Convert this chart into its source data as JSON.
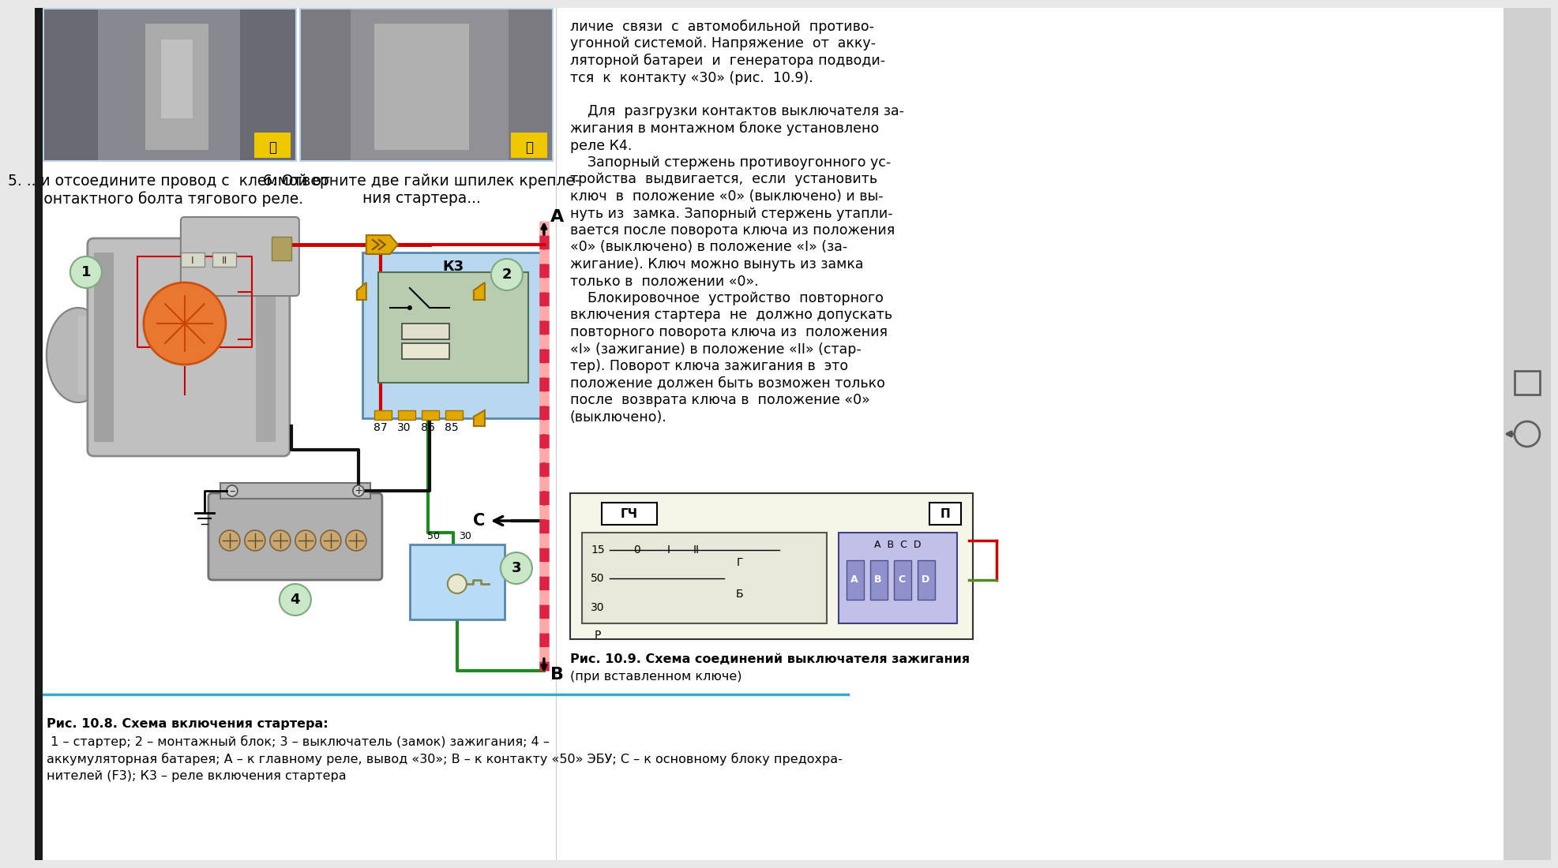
{
  "bg_color": "#e8e8e8",
  "content_bg": "#ffffff",
  "left_bar_color": "#1a1a1a",
  "right_bar_color": "#d0d0d0",
  "photo_bg1": "#8a8a8a",
  "photo_bg2": "#909090",
  "photo_border": "#b8d0e8",
  "photo_inner_border": "#90b8d8",
  "yellow_icon_color": "#f0c800",
  "step5_text": "5. ...и отсоедините провод с  клеммой от\nконтактного болта тягового реле.",
  "step6_text": "6. Отверните две гайки шпилек крепле-\nния стартера...",
  "relay_label": "К3",
  "relay_pins": [
    "87",
    "30",
    "86",
    "85"
  ],
  "label_A": "A",
  "label_B": "B",
  "label_C": "C",
  "circle_color": "#c8e8c8",
  "circle_edge": "#80a880",
  "relay_bg": "#b8d8f0",
  "relay_border": "#5888aa",
  "relay_inner_bg": "#b8ccb0",
  "relay_inner_border": "#507050",
  "starter_body_color": "#c8c8c8",
  "starter_edge": "#909090",
  "battery_color": "#b0b0b0",
  "battery_edge": "#707070",
  "battery_cell_color": "#c8a870",
  "battery_cell_edge": "#806040",
  "ign_box_color": "#b8dcf8",
  "ign_box_edge": "#5888aa",
  "orange_motor": "#e87830",
  "red_wire": "#cc0000",
  "black_wire": "#111111",
  "green_wire": "#008800",
  "brown_wire": "#884422",
  "stripe_pink": "#ffaaaa",
  "stripe_red": "#dd2244",
  "connector_yellow": "#e0a800",
  "connector_edge": "#a07000",
  "caption_bold": "Рис. 10.8. Схема включения стартера:",
  "caption_rest": " 1 – стартер; 2 – монтажный блок; 3 – выключатель (замок) зажигания; 4 –",
  "caption_line2": "аккумуляторная батарея; А – к главному реле, вывод «30»; В – к контакту «50» ЭБУ; С – к основному блоку предохра-",
  "caption_line3": "нителей (F3); К3 – реле включения стартера",
  "right_text": [
    "личие  связи  с  автомобильной  противо-",
    "угонной системой. Напряжение  от  акку-",
    "ляторной батареи  и  генератора подводи-",
    "тся  к  контакту «30» (рис.  10.9).",
    "",
    "    Для  разгрузки контактов выключателя за-",
    "жигания в монтажном блоке установлено",
    "реле К4.",
    "    Запорный стержень противоугонного ус-",
    "тройства  выдвигается,  если  установить",
    "ключ  в  положение «0» (выключено) и вы-",
    "нуть из  замка. Запорный стержень утапли-",
    "вается после поворота ключа из положения",
    "«0» (выключено) в положение «I» (за-",
    "жигание). Ключ можно вынуть из замка",
    "только в  положении «0».",
    "    Блокировочное  устройство  повторного",
    "включения стартера  не  должно допускать",
    "повторного поворота ключа из  положения",
    "«I» (зажигание) в положение «II» (стар-",
    "тер). Поворот ключа зажигания в  это",
    "положение должен быть возможен только",
    "после  возврата ключа в  положение «0»",
    "(выключено)."
  ],
  "caption2_bold": "Рис. 10.9. Схема соединений выключателя зажигания",
  "caption2_text": "(при вставленном ключе)",
  "diag_bg": "#f5f5e8",
  "diag_border": "#333333",
  "diag_inner_bg": "#e8e8d8",
  "connector_blue": "#8888cc"
}
